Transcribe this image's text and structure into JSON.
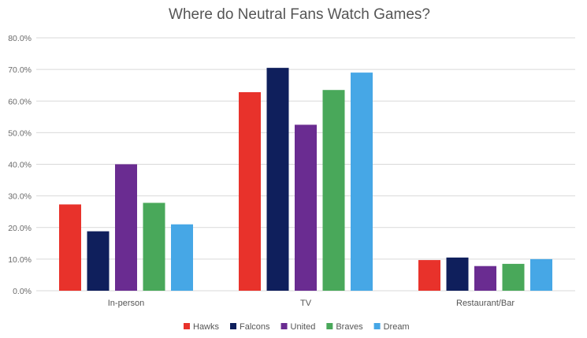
{
  "chart_data": {
    "type": "bar",
    "title": "Where do Neutral Fans Watch Games?",
    "categories": [
      "In-person",
      "TV",
      "Restaurant/Bar"
    ],
    "series": [
      {
        "name": "Hawks",
        "color": "#e8322b",
        "values": [
          27.3,
          62.8,
          9.7
        ]
      },
      {
        "name": "Falcons",
        "color": "#0f1f5c",
        "values": [
          18.8,
          70.5,
          10.5
        ]
      },
      {
        "name": "United",
        "color": "#6a2c91",
        "values": [
          40.0,
          52.5,
          7.8
        ]
      },
      {
        "name": "Braves",
        "color": "#49a85a",
        "values": [
          27.8,
          63.5,
          8.5
        ]
      },
      {
        "name": "Dream",
        "color": "#46a7e6",
        "values": [
          21.0,
          69.0,
          10.0
        ]
      }
    ],
    "ylim": [
      0,
      80
    ],
    "yticks": [
      0,
      10,
      20,
      30,
      40,
      50,
      60,
      70,
      80
    ],
    "ytick_labels": [
      "0.0%",
      "10.0%",
      "20.0%",
      "30.0%",
      "40.0%",
      "50.0%",
      "60.0%",
      "70.0%",
      "80.0%"
    ],
    "xlabel": "",
    "ylabel": "",
    "grid": true,
    "legend": "bottom"
  }
}
